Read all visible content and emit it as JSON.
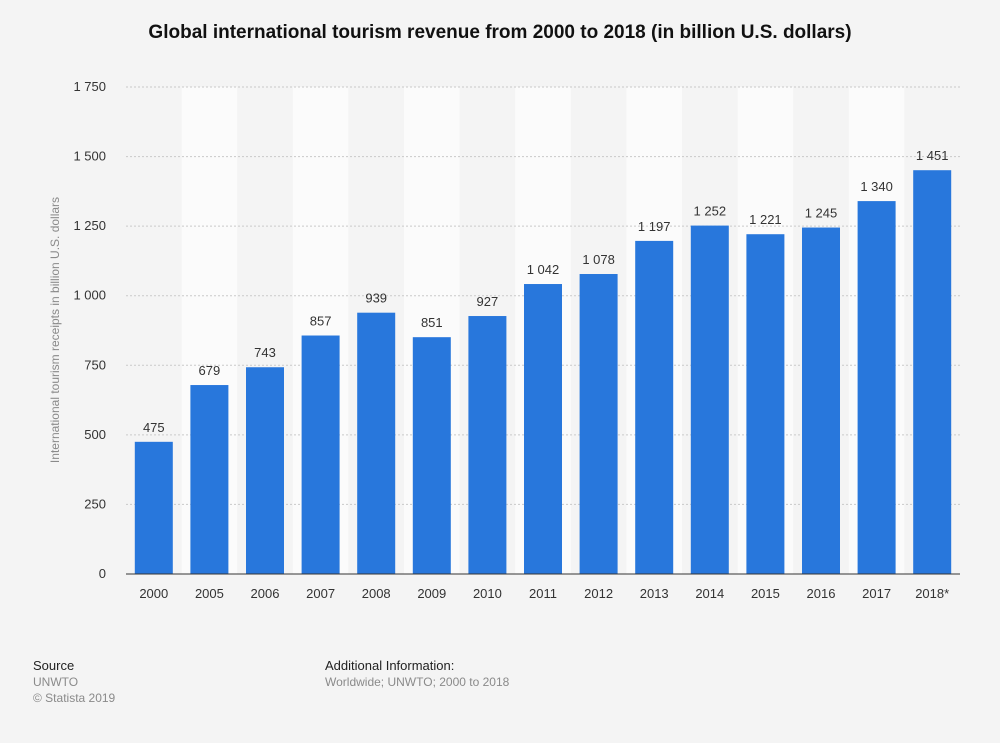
{
  "chart_data": {
    "type": "bar",
    "title": "Global international tourism revenue from 2000 to 2018 (in billion U.S. dollars)",
    "xlabel": "",
    "ylabel": "International tourism receipts in billion U.S. dollars",
    "categories": [
      "2000",
      "2005",
      "2006",
      "2007",
      "2008",
      "2009",
      "2010",
      "2011",
      "2012",
      "2013",
      "2014",
      "2015",
      "2016",
      "2017",
      "2018*"
    ],
    "values": [
      475,
      679,
      743,
      857,
      939,
      851,
      927,
      1042,
      1078,
      1197,
      1252,
      1221,
      1245,
      1340,
      1451
    ],
    "value_labels": [
      "475",
      "679",
      "743",
      "857",
      "939",
      "851",
      "927",
      "1 042",
      "1 078",
      "1 197",
      "1 252",
      "1 221",
      "1 245",
      "1 340",
      "1 451"
    ],
    "ylim": [
      0,
      1750
    ],
    "yticks": [
      0,
      250,
      500,
      750,
      1000,
      1250,
      1500,
      1750
    ],
    "ytick_labels": [
      "0",
      "250",
      "500",
      "750",
      "1 000",
      "1 250",
      "1 500",
      "1 750"
    ],
    "grid": true,
    "bar_color": "#2877dc"
  },
  "footer": {
    "source_heading": "Source",
    "source_name": "UNWTO",
    "copyright": "© Statista 2019",
    "info_heading": "Additional Information:",
    "info_text": "Worldwide; UNWTO; 2000 to 2018"
  }
}
